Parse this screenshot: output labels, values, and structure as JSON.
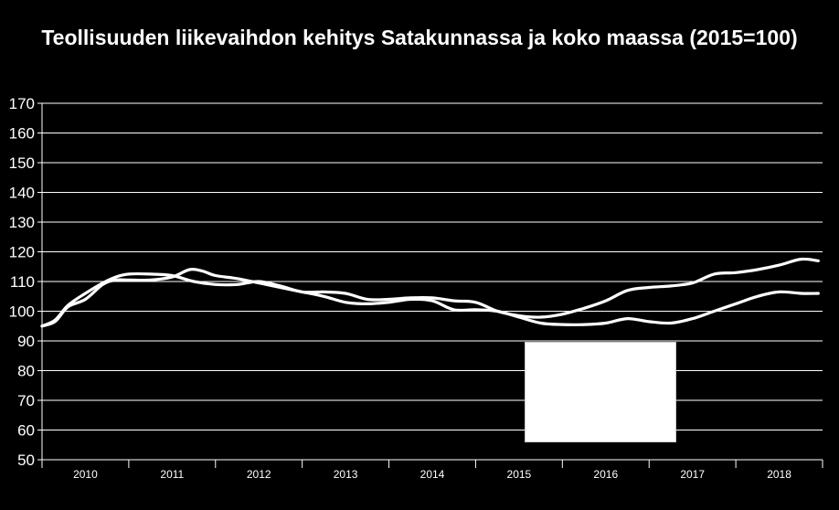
{
  "chart_data": {
    "type": "line",
    "title": "Teollisuuden liikevaihdon kehitys Satakunnassa ja koko maassa (2015=100)",
    "xlabel": "",
    "ylabel": "",
    "ylim": [
      50,
      170
    ],
    "yticks": [
      50,
      60,
      70,
      80,
      90,
      100,
      110,
      120,
      130,
      140,
      150,
      160,
      170
    ],
    "xlim": [
      2010.0,
      2019.0
    ],
    "year_labels": [
      "2010",
      "2011",
      "2012",
      "2013",
      "2014",
      "2015",
      "2016",
      "2017",
      "2018"
    ],
    "grid": true,
    "legend": "bottom-center box (entries not visible)",
    "colors": {
      "background": "#000000",
      "lines": "#ffffff",
      "grid": "#ffffff"
    },
    "series": [
      {
        "x": [
          2010.0,
          2010.15,
          2010.3,
          2010.5,
          2010.7,
          2010.85,
          2011.0,
          2011.25,
          2011.5,
          2011.75,
          2012.0,
          2012.25,
          2012.5,
          2012.75,
          2013.0,
          2013.25,
          2013.5,
          2013.75,
          2014.0,
          2014.25,
          2014.5,
          2014.75,
          2015.0,
          2015.25,
          2015.5,
          2015.75,
          2016.0,
          2016.25,
          2016.5,
          2016.75,
          2017.0,
          2017.25,
          2017.5,
          2017.75,
          2018.0,
          2018.25,
          2018.5,
          2018.75,
          2018.95
        ],
        "values": [
          95,
          97,
          102,
          106,
          109.5,
          111.5,
          112.5,
          112.5,
          112,
          110,
          109,
          109,
          110,
          108.5,
          106.5,
          106.5,
          106,
          104,
          104,
          104.5,
          104.5,
          103.5,
          103,
          100,
          98.5,
          98,
          99,
          101,
          103.5,
          107,
          108,
          108.5,
          109.5,
          112.5,
          113,
          114,
          115.5,
          117.5,
          117
        ]
      },
      {
        "x": [
          2010.0,
          2010.15,
          2010.3,
          2010.5,
          2010.7,
          2010.85,
          2011.0,
          2011.25,
          2011.5,
          2011.7,
          2011.85,
          2012.0,
          2012.25,
          2012.5,
          2012.75,
          2013.0,
          2013.25,
          2013.5,
          2013.75,
          2014.0,
          2014.25,
          2014.5,
          2014.75,
          2015.0,
          2015.25,
          2015.5,
          2015.75,
          2016.0,
          2016.25,
          2016.5,
          2016.75,
          2017.0,
          2017.25,
          2017.5,
          2017.75,
          2018.0,
          2018.25,
          2018.5,
          2018.75,
          2018.95
        ],
        "values": [
          95,
          96.5,
          101.5,
          104,
          109,
          110.5,
          110.5,
          110.5,
          111.5,
          114,
          113.5,
          112,
          111,
          109.5,
          108,
          106.5,
          105,
          103,
          102.5,
          103,
          104,
          103.5,
          100.5,
          100.5,
          100,
          98,
          96,
          95.5,
          95.5,
          96,
          97.5,
          96.5,
          96,
          97.5,
          100,
          102.5,
          105,
          106.5,
          106,
          106
        ]
      }
    ]
  }
}
